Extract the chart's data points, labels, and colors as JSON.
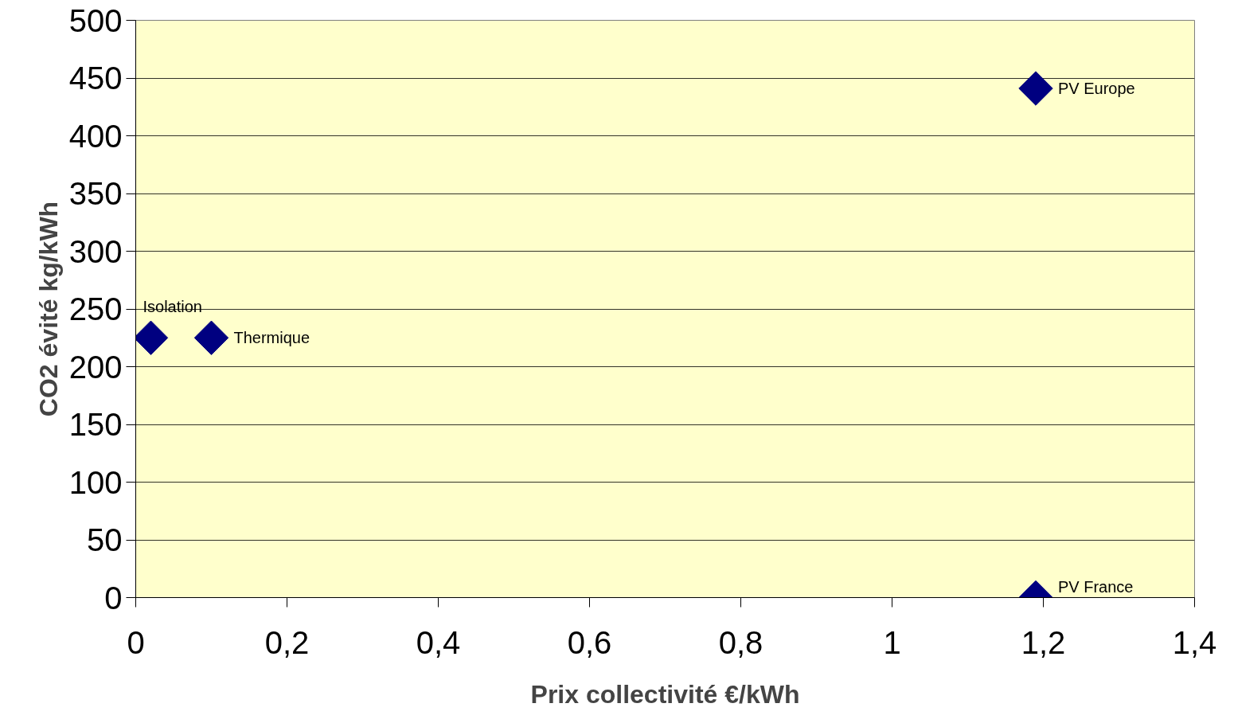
{
  "chart_data": {
    "type": "scatter",
    "xlabel": "Prix collectivité €/kWh",
    "ylabel": "CO2 évité kg/kWh",
    "x": [
      0.02,
      0.1,
      1.19,
      1.19
    ],
    "series": [
      {
        "color": "#000080",
        "values": [
          225,
          225,
          441,
          0
        ]
      }
    ],
    "marker": "diamond",
    "grid": "y",
    "xlim": [
      0,
      1.4
    ],
    "xticks": [
      {
        "value": 0,
        "label": "0"
      },
      {
        "value": 0.2,
        "label": "0,2"
      },
      {
        "value": 0.4,
        "label": "0,4"
      },
      {
        "value": 0.6,
        "label": "0,6"
      },
      {
        "value": 0.8,
        "label": "0,8"
      },
      {
        "value": 1,
        "label": "1"
      },
      {
        "value": 1.2,
        "label": "1,2"
      },
      {
        "value": 1.4,
        "label": "1,4"
      }
    ],
    "ylim": [
      0,
      500
    ],
    "yticks": [
      0,
      50,
      100,
      150,
      200,
      250,
      300,
      350,
      400,
      450,
      500
    ],
    "annotations": [
      {
        "text": "Isolation",
        "x": 0.02,
        "y": 225
      },
      {
        "text": "Thermique",
        "x": 0.1,
        "y": 225
      },
      {
        "text": "PV Europe",
        "x": 1.19,
        "y": 441
      },
      {
        "text": "PV France",
        "x": 1.19,
        "y": 0
      }
    ]
  }
}
